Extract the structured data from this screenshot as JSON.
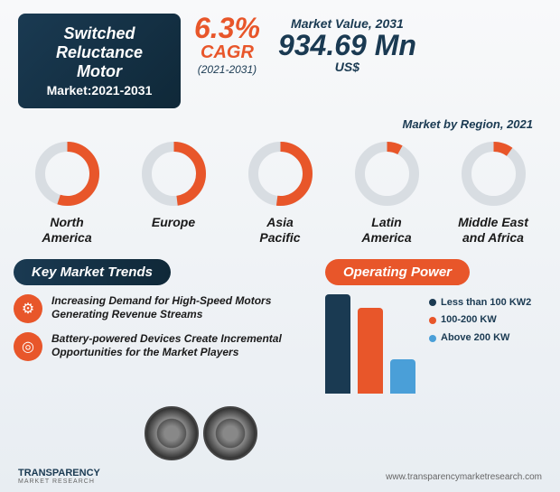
{
  "header": {
    "title_line1": "Switched",
    "title_line2": "Reluctance Motor",
    "title_line3": "Market:",
    "period": "2021-2031",
    "cagr_value": "6.3%",
    "cagr_label": "CAGR",
    "cagr_period": "(2021-2031)",
    "mv_label": "Market Value, 2031",
    "mv_value": "934.69 Mn",
    "mv_unit": "US$"
  },
  "region_header": "Market by Region, 2021",
  "regions": [
    {
      "label": "North\nAmerica",
      "pct": 55
    },
    {
      "label": "Europe",
      "pct": 48
    },
    {
      "label": "Asia\nPacific",
      "pct": 52
    },
    {
      "label": "Latin\nAmerica",
      "pct": 8
    },
    {
      "label": "Middle East\nand Africa",
      "pct": 10
    }
  ],
  "trends": {
    "heading": "Key Market Trends",
    "items": [
      "Increasing Demand for High-Speed Motors Generating Revenue Streams",
      "Battery-powered Devices Create Incremental Opportunities for the Market Players"
    ]
  },
  "operating": {
    "heading": "Operating Power",
    "bars": [
      {
        "h": 110,
        "color": "#1a3a52"
      },
      {
        "h": 95,
        "color": "#e8562a"
      },
      {
        "h": 38,
        "color": "#4a9fd8"
      }
    ],
    "legend": [
      {
        "label": "Less than 100 KW2",
        "color": "#1a3a52"
      },
      {
        "label": "100-200 KW",
        "color": "#e8562a"
      },
      {
        "label": "Above 200 KW",
        "color": "#4a9fd8"
      }
    ]
  },
  "footer": {
    "logo1": "TRANSPARENCY",
    "logo2": "MARKET RESEARCH",
    "url": "www.transparencymarketresearch.com"
  }
}
